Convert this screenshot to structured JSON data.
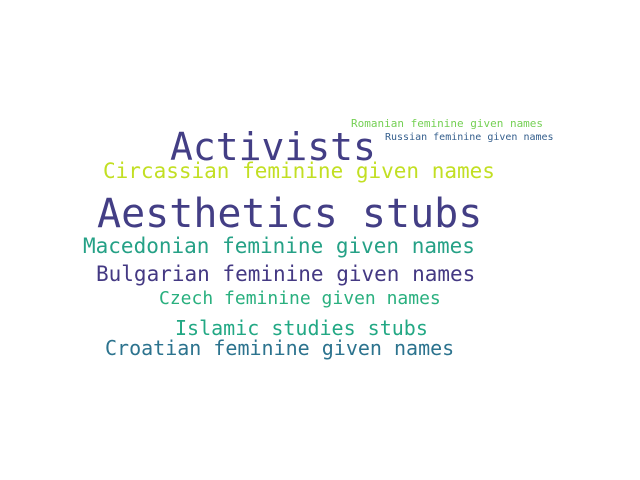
{
  "wordcloud": {
    "words": [
      {
        "text": "Aesthetics stubs",
        "color": "#433e85"
      },
      {
        "text": "Activists",
        "color": "#433e85"
      },
      {
        "text": "Circassian feminine given names",
        "color": "#c2df23"
      },
      {
        "text": "Macedonian feminine given names",
        "color": "#25a186"
      },
      {
        "text": "Bulgarian feminine given names",
        "color": "#443983"
      },
      {
        "text": "Czech feminine given names",
        "color": "#2ab07f"
      },
      {
        "text": "Islamic studies stubs",
        "color": "#22a884"
      },
      {
        "text": "Croatian feminine given names",
        "color": "#2c738e"
      },
      {
        "text": "Romanian feminine given names",
        "color": "#75d054"
      },
      {
        "text": "Russian feminine given names",
        "color": "#355f8d"
      }
    ]
  }
}
